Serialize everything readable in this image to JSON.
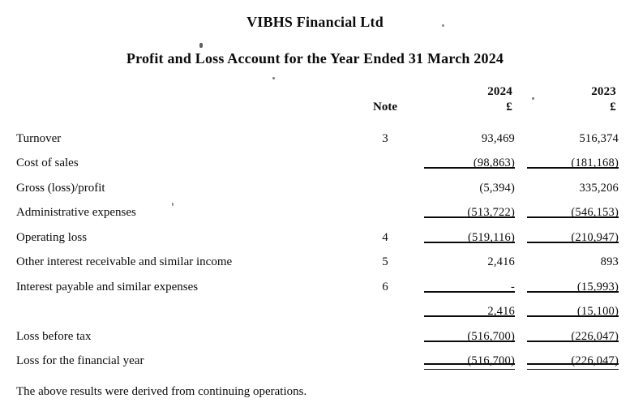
{
  "page": {
    "title": "VIBHS Financial Ltd",
    "subtitle": "Profit and Loss Account for the Year Ended 31 March 2024",
    "footer": "The above results were derived from continuing operations."
  },
  "table": {
    "col_note": "Note",
    "col_year_1": "2024",
    "col_year_2": "2023",
    "currency_symbol": "£",
    "rows": [
      {
        "label": "Turnover",
        "note": "3",
        "v2024": "93,469",
        "v2023": "516,374",
        "underline": "none"
      },
      {
        "label": "Cost of sales",
        "note": "",
        "v2024": "(98,863)",
        "v2023": "(181,168)",
        "underline": "single"
      },
      {
        "label": "Gross (loss)/profit",
        "note": "",
        "v2024": "(5,394)",
        "v2023": "335,206",
        "underline": "none"
      },
      {
        "label": "Administrative expenses",
        "note": "",
        "v2024": "(513,722)",
        "v2023": "(546,153)",
        "underline": "single"
      },
      {
        "label": "Operating loss",
        "note": "4",
        "v2024": "(519,116)",
        "v2023": "(210,947)",
        "underline": "single"
      },
      {
        "label": "Other interest receivable and similar income",
        "note": "5",
        "v2024": "2,416",
        "v2023": "893",
        "underline": "none"
      },
      {
        "label": "Interest payable and similar expenses",
        "note": "6",
        "v2024": "-",
        "v2023": "(15,993)",
        "underline": "single"
      },
      {
        "label": "",
        "note": "",
        "v2024": "2,416",
        "v2023": "(15,100)",
        "underline": "single"
      },
      {
        "label": "Loss before tax",
        "note": "",
        "v2024": "(516,700)",
        "v2023": "(226,047)",
        "underline": "single"
      },
      {
        "label": "Loss for the financial year",
        "note": "",
        "v2024": "(516,700)",
        "v2023": "(226,047)",
        "underline": "double"
      }
    ]
  }
}
